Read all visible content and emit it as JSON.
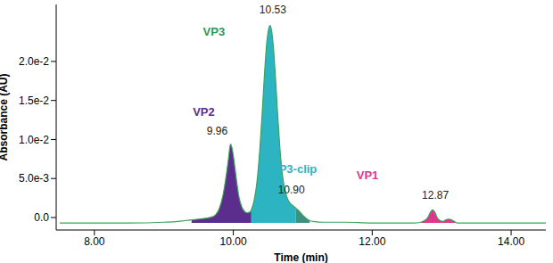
{
  "chart_data": {
    "type": "line",
    "x_label": "Time (min)",
    "y_label": "Absorbance (AU)",
    "color": "#3aa35a",
    "x": [
      7.5,
      8.0,
      8.5,
      9.0,
      9.2,
      9.3,
      9.4,
      9.5,
      9.6,
      9.7,
      9.75,
      9.8,
      9.85,
      9.9,
      9.93,
      9.96,
      9.99,
      10.02,
      10.05,
      10.08,
      10.12,
      10.16,
      10.2,
      10.24,
      10.26,
      10.3,
      10.34,
      10.38,
      10.42,
      10.45,
      10.48,
      10.51,
      10.53,
      10.55,
      10.58,
      10.61,
      10.64,
      10.67,
      10.7,
      10.74,
      10.78,
      10.82,
      10.86,
      10.9,
      10.95,
      11.0,
      11.05,
      11.1,
      11.15,
      11.3,
      11.6,
      12.0,
      12.4,
      12.6,
      12.7,
      12.75,
      12.8,
      12.84,
      12.87,
      12.9,
      12.94,
      12.98,
      13.02,
      13.06,
      13.1,
      13.14,
      13.18,
      13.22,
      13.4,
      13.8,
      14.2,
      14.5
    ],
    "values": [
      -0.0007,
      -0.0007,
      -0.0007,
      -0.0006,
      -0.0005,
      -0.0004,
      -0.0003,
      -0.0002,
      -0.0001,
      0.0001,
      0.0004,
      0.0012,
      0.0028,
      0.0055,
      0.0075,
      0.0094,
      0.0085,
      0.0066,
      0.0045,
      0.0027,
      0.0014,
      0.0008,
      0.0006,
      0.0007,
      0.001,
      0.0022,
      0.0045,
      0.0085,
      0.014,
      0.0185,
      0.0222,
      0.0242,
      0.0246,
      0.024,
      0.0215,
      0.0175,
      0.013,
      0.009,
      0.006,
      0.0036,
      0.0024,
      0.0018,
      0.0015,
      0.0012,
      0.0008,
      0.0003,
      -0.0001,
      -0.0004,
      -0.0005,
      -0.0006,
      -0.0006,
      -0.0007,
      -0.0007,
      -0.0007,
      -0.0006,
      -0.0004,
      0.0,
      0.0007,
      0.001,
      0.0007,
      -0.0001,
      -0.0004,
      -0.0005,
      -0.0003,
      -0.0002,
      -0.0003,
      -0.0005,
      -0.0007,
      -0.0007,
      -0.0007,
      -0.0007,
      -0.0007
    ],
    "peaks": [
      {
        "name": "VP2",
        "color": "#5b2d8c",
        "time": 9.96,
        "time_label": "9.96",
        "start": 9.4,
        "end": 10.26
      },
      {
        "name": "VP3",
        "color": "#2db4c3",
        "time": 10.53,
        "time_label": "10.53",
        "start": 10.26,
        "end": 10.9
      },
      {
        "name": "VP3-clip",
        "color": "#3d8f80",
        "time": 10.9,
        "time_label": "10.90",
        "start": 10.9,
        "end": 11.1
      },
      {
        "name": "VP1",
        "color": "#e0368f",
        "time": 12.87,
        "time_label": "12.87",
        "start": 12.7,
        "end": 13.22
      }
    ],
    "xlim": [
      7.45,
      14.5
    ],
    "xticks": [
      {
        "value": 8,
        "label": "8.00"
      },
      {
        "value": 10,
        "label": "10.00"
      },
      {
        "value": 12,
        "label": "12.00"
      },
      {
        "value": 14,
        "label": "14.00"
      }
    ],
    "ylim": [
      -0.0016,
      0.0273
    ],
    "yticks": [
      {
        "value": 0,
        "label": "0.0"
      },
      {
        "value": 0.005,
        "label": "5.0e-3"
      },
      {
        "value": 0.01,
        "label": "1.0e-2"
      },
      {
        "value": 0.015,
        "label": "1.5e-2"
      },
      {
        "value": 0.02,
        "label": "2.0e-2"
      }
    ],
    "grid": false
  }
}
